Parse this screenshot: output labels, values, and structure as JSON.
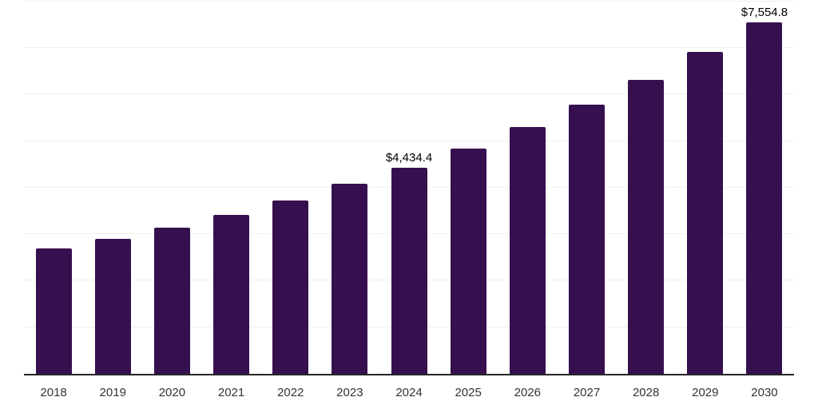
{
  "chart_data": {
    "type": "bar",
    "title": "",
    "xlabel": "",
    "ylabel": "",
    "legend_position": "none",
    "grid": "horizontal-faint",
    "categories": [
      "2018",
      "2019",
      "2020",
      "2021",
      "2022",
      "2023",
      "2024",
      "2025",
      "2026",
      "2027",
      "2028",
      "2029",
      "2030"
    ],
    "values": [
      2695,
      2905,
      3135,
      3415,
      3725,
      4085,
      4434.4,
      4846,
      5297,
      5789,
      6326,
      6914,
      7554.8
    ],
    "data_labels": {
      "2024": "$4,434.4",
      "2030": "$7,554.8"
    },
    "ylim": [
      0,
      8000
    ],
    "gridline_step": 1000,
    "bar_color": "#36104E",
    "axis_line_color": "#262626",
    "gridline_color": "#f0f0f0",
    "tick_label_color": "#333333",
    "data_label_color": "#000000"
  }
}
